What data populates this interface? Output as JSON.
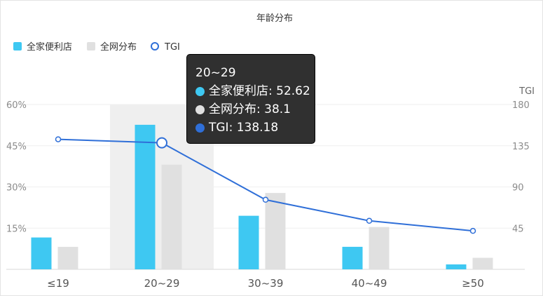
{
  "chart_data": {
    "type": "bar",
    "title": "年龄分布",
    "categories": [
      "≤19",
      "20~29",
      "30~39",
      "40~49",
      "≥50"
    ],
    "series": [
      {
        "name": "全家便利店",
        "type": "bar",
        "color": "#3ec8f2",
        "values": [
          11.6,
          52.62,
          19.5,
          8.2,
          1.8
        ]
      },
      {
        "name": "全网分布",
        "type": "bar",
        "color": "#e0e0e0",
        "values": [
          8.2,
          38.1,
          27.8,
          15.4,
          4.2
        ]
      },
      {
        "name": "TGI",
        "type": "line",
        "color": "#2f6fd8",
        "axis": "right",
        "values": [
          142,
          138.18,
          76,
          53,
          42
        ]
      }
    ],
    "y_left": {
      "ticks": [
        "15%",
        "30%",
        "45%",
        "60%"
      ],
      "range": [
        0,
        60
      ]
    },
    "y_right": {
      "label": "TGI",
      "ticks": [
        "45",
        "90",
        "135",
        "180"
      ],
      "range": [
        0,
        180
      ]
    },
    "grid": true,
    "legend_position": "top-left",
    "highlight_category": "20~29"
  },
  "tooltip": {
    "title": "20~29",
    "rows": [
      {
        "text": "全家便利店: 52.62",
        "color": "#3ec8f2"
      },
      {
        "text": "全网分布: 38.1",
        "color": "#e0e0e0"
      },
      {
        "text": "TGI: 138.18",
        "color": "#2f6fd8"
      }
    ]
  }
}
